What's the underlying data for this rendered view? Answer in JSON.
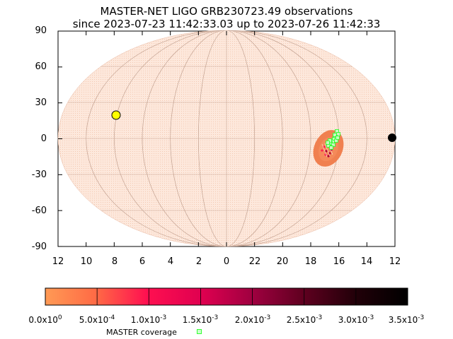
{
  "title": {
    "line1": "MASTER-NET LIGO GRB230723.49 observations",
    "line2": "since 2023-07-23 11:42:33.03 up to 2023-07-26 11:42:33"
  },
  "axes": {
    "y_ticks": [
      "90",
      "60",
      "30",
      "0",
      "-30",
      "-60",
      "-90"
    ],
    "x_ticks": [
      "12",
      "10",
      "8",
      "6",
      "4",
      "2",
      "0",
      "22",
      "20",
      "18",
      "16",
      "14",
      "12"
    ],
    "y_unit": "degrees",
    "x_unit": "hours"
  },
  "colorbar": {
    "labels": [
      {
        "mant": "0.0x10",
        "exp": "0"
      },
      {
        "mant": "5.0x10",
        "exp": "-4"
      },
      {
        "mant": "1.0x10",
        "exp": "-3"
      },
      {
        "mant": "1.5x10",
        "exp": "-3"
      },
      {
        "mant": "2.0x10",
        "exp": "-3"
      },
      {
        "mant": "2.5x10",
        "exp": "-3"
      },
      {
        "mant": "3.0x10",
        "exp": "-3"
      },
      {
        "mant": "3.5x10",
        "exp": "-3"
      }
    ],
    "min": 0,
    "max": 0.0035,
    "colors": [
      "#ff9a55",
      "#ff6a45",
      "#ff1050",
      "#e00050",
      "#a00040",
      "#600020",
      "#200008",
      "#000000"
    ]
  },
  "legend": {
    "label": "MASTER coverage",
    "color": "#33ff33"
  },
  "map": {
    "projection": "Aitoff/Hammer all-sky",
    "background_color": "#fde8dc",
    "sun": {
      "ra_h": 8.0,
      "dec_deg": 20,
      "color": "#ffff00"
    },
    "moon": {
      "ra_h": 12.0,
      "dec_deg": 1,
      "color": "#000000"
    },
    "localization_region": {
      "ra_h": 15.3,
      "dec_deg": -8,
      "color": "#f08050"
    },
    "coverage_fields": {
      "ra_h": 15.2,
      "dec_deg": -3,
      "color": "#33ff33"
    }
  }
}
